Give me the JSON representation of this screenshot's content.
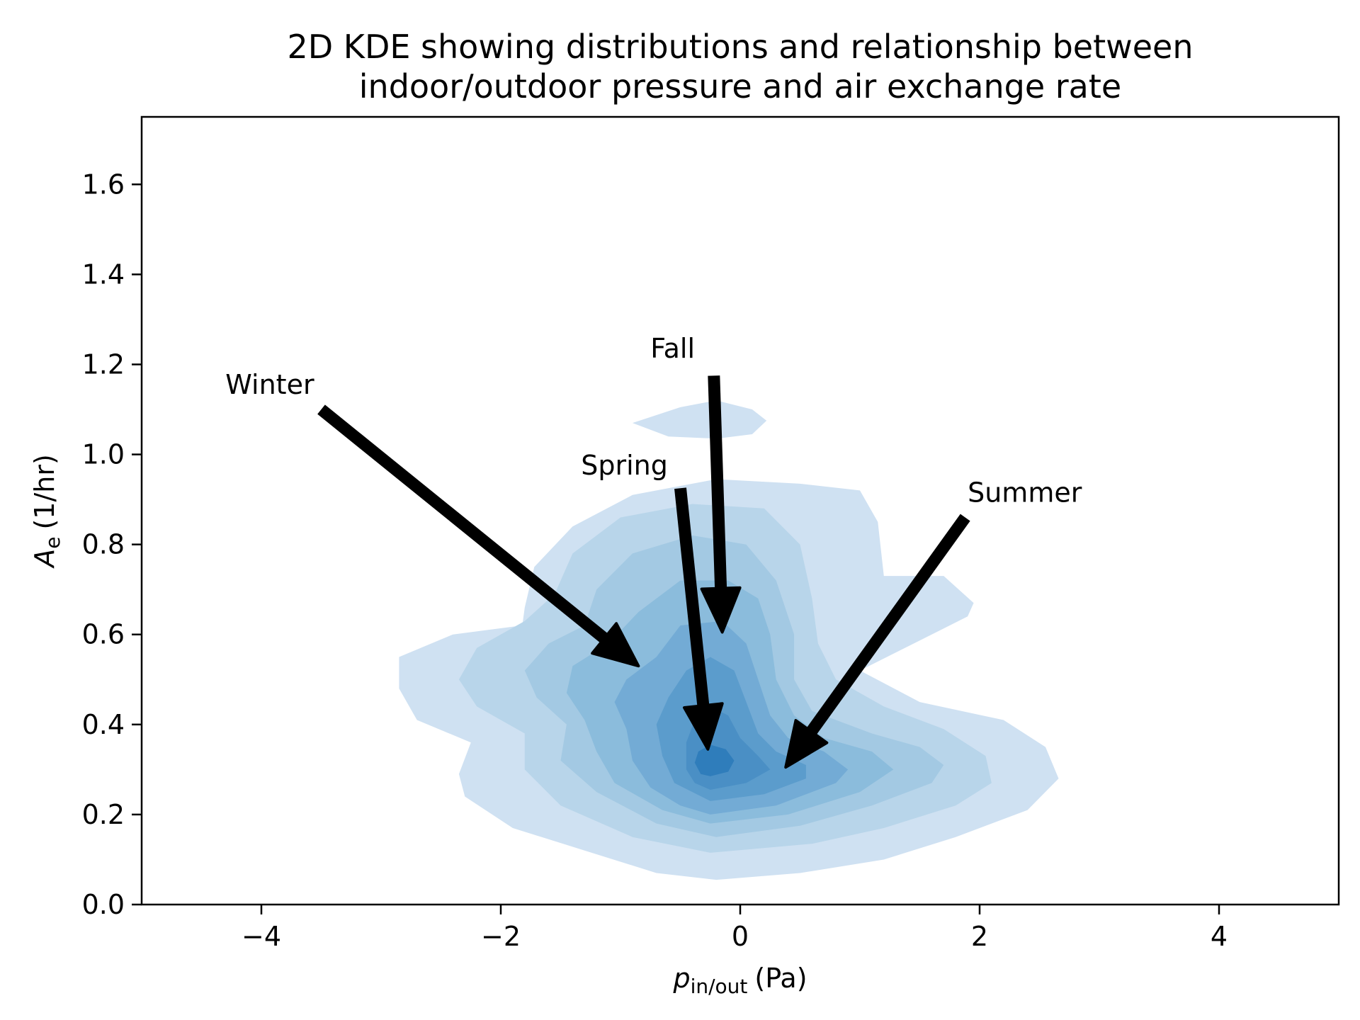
{
  "chart_data": {
    "type": "kde2d",
    "title": [
      "2D KDE showing distributions and relationship between",
      "indoor/outdoor pressure and air exchange rate"
    ],
    "xlabel": {
      "symbol": "p",
      "subscript": "in/out",
      "unit": "(Pa)"
    },
    "ylabel": {
      "symbol": "A",
      "subscript": "e",
      "unit": "(1/hr)"
    },
    "xlim": [
      -5,
      5
    ],
    "ylim": [
      0,
      1.75
    ],
    "xticks": [
      {
        "value": -4,
        "label": "−4"
      },
      {
        "value": -2,
        "label": "−2"
      },
      {
        "value": 0,
        "label": "0"
      },
      {
        "value": 2,
        "label": "2"
      },
      {
        "value": 4,
        "label": "4"
      }
    ],
    "yticks": [
      {
        "value": 0.0,
        "label": "0.0"
      },
      {
        "value": 0.2,
        "label": "0.2"
      },
      {
        "value": 0.4,
        "label": "0.4"
      },
      {
        "value": 0.6,
        "label": "0.6"
      },
      {
        "value": 0.8,
        "label": "0.8"
      },
      {
        "value": 1.0,
        "label": "1.0"
      },
      {
        "value": 1.2,
        "label": "1.2"
      },
      {
        "value": 1.4,
        "label": "1.4"
      },
      {
        "value": 1.6,
        "label": "1.6"
      }
    ],
    "grid": false,
    "colors": [
      "#cfe1f2",
      "#b8d5ea",
      "#a3c9e3",
      "#8bbcdc",
      "#73abd5",
      "#5b9ccc",
      "#4a8fc5",
      "#2f7dbb"
    ],
    "density_levels": [
      {
        "level": 1,
        "polygon": [
          [
            -0.2,
            0.055
          ],
          [
            0.5,
            0.07
          ],
          [
            1.2,
            0.1
          ],
          [
            1.8,
            0.15
          ],
          [
            2.4,
            0.21
          ],
          [
            2.66,
            0.28
          ],
          [
            2.55,
            0.35
          ],
          [
            2.2,
            0.41
          ],
          [
            1.5,
            0.45
          ],
          [
            1.0,
            0.52
          ],
          [
            1.45,
            0.58
          ],
          [
            1.9,
            0.64
          ],
          [
            1.95,
            0.67
          ],
          [
            1.7,
            0.73
          ],
          [
            1.2,
            0.73
          ],
          [
            1.15,
            0.85
          ],
          [
            1.0,
            0.92
          ],
          [
            0.5,
            0.935
          ],
          [
            -0.2,
            0.945
          ],
          [
            -0.9,
            0.91
          ],
          [
            -1.4,
            0.84
          ],
          [
            -1.72,
            0.75
          ],
          [
            -1.8,
            0.66
          ],
          [
            -1.82,
            0.62
          ],
          [
            -2.4,
            0.6
          ],
          [
            -2.85,
            0.55
          ],
          [
            -2.85,
            0.48
          ],
          [
            -2.7,
            0.41
          ],
          [
            -2.25,
            0.36
          ],
          [
            -2.35,
            0.29
          ],
          [
            -2.3,
            0.24
          ],
          [
            -1.9,
            0.17
          ],
          [
            -1.3,
            0.12
          ],
          [
            -0.7,
            0.07
          ],
          [
            -0.2,
            0.055
          ]
        ]
      },
      {
        "level": 2,
        "polygon": [
          [
            -0.25,
            0.115
          ],
          [
            0.6,
            0.135
          ],
          [
            1.2,
            0.17
          ],
          [
            1.8,
            0.22
          ],
          [
            2.1,
            0.27
          ],
          [
            2.05,
            0.33
          ],
          [
            1.7,
            0.39
          ],
          [
            1.2,
            0.44
          ],
          [
            0.8,
            0.5
          ],
          [
            0.65,
            0.58
          ],
          [
            0.6,
            0.68
          ],
          [
            0.5,
            0.8
          ],
          [
            0.2,
            0.88
          ],
          [
            -0.4,
            0.89
          ],
          [
            -1.0,
            0.86
          ],
          [
            -1.4,
            0.78
          ],
          [
            -1.55,
            0.69
          ],
          [
            -1.8,
            0.63
          ],
          [
            -2.2,
            0.57
          ],
          [
            -2.35,
            0.5
          ],
          [
            -2.2,
            0.44
          ],
          [
            -1.8,
            0.38
          ],
          [
            -1.8,
            0.3
          ],
          [
            -1.5,
            0.22
          ],
          [
            -0.9,
            0.15
          ],
          [
            -0.25,
            0.115
          ]
        ]
      },
      {
        "level": 3,
        "polygon": [
          [
            -0.2,
            0.15
          ],
          [
            0.5,
            0.175
          ],
          [
            1.1,
            0.22
          ],
          [
            1.6,
            0.27
          ],
          [
            1.7,
            0.31
          ],
          [
            1.5,
            0.35
          ],
          [
            1.1,
            0.38
          ],
          [
            0.6,
            0.43
          ],
          [
            0.45,
            0.5
          ],
          [
            0.45,
            0.6
          ],
          [
            0.3,
            0.72
          ],
          [
            0.05,
            0.8
          ],
          [
            -0.4,
            0.82
          ],
          [
            -0.9,
            0.78
          ],
          [
            -1.2,
            0.7
          ],
          [
            -1.3,
            0.62
          ],
          [
            -1.6,
            0.58
          ],
          [
            -1.8,
            0.52
          ],
          [
            -1.7,
            0.46
          ],
          [
            -1.45,
            0.4
          ],
          [
            -1.5,
            0.32
          ],
          [
            -1.2,
            0.25
          ],
          [
            -0.7,
            0.18
          ],
          [
            -0.2,
            0.15
          ]
        ]
      },
      {
        "level": 4,
        "polygon": [
          [
            -0.25,
            0.18
          ],
          [
            0.4,
            0.2
          ],
          [
            1.0,
            0.25
          ],
          [
            1.28,
            0.3
          ],
          [
            1.1,
            0.34
          ],
          [
            0.7,
            0.37
          ],
          [
            0.45,
            0.42
          ],
          [
            0.3,
            0.5
          ],
          [
            0.25,
            0.6
          ],
          [
            0.15,
            0.68
          ],
          [
            -0.1,
            0.72
          ],
          [
            -0.5,
            0.72
          ],
          [
            -0.85,
            0.65
          ],
          [
            -1.1,
            0.58
          ],
          [
            -1.4,
            0.53
          ],
          [
            -1.45,
            0.47
          ],
          [
            -1.3,
            0.41
          ],
          [
            -1.2,
            0.34
          ],
          [
            -1.05,
            0.27
          ],
          [
            -0.65,
            0.21
          ],
          [
            -0.25,
            0.18
          ]
        ]
      },
      {
        "level": 5,
        "polygon": [
          [
            -0.25,
            0.2
          ],
          [
            0.3,
            0.22
          ],
          [
            0.8,
            0.27
          ],
          [
            0.9,
            0.3
          ],
          [
            0.7,
            0.34
          ],
          [
            0.4,
            0.37
          ],
          [
            0.25,
            0.42
          ],
          [
            0.15,
            0.5
          ],
          [
            0.05,
            0.58
          ],
          [
            -0.15,
            0.63
          ],
          [
            -0.5,
            0.62
          ],
          [
            -0.7,
            0.55
          ],
          [
            -0.95,
            0.5
          ],
          [
            -1.05,
            0.45
          ],
          [
            -0.95,
            0.39
          ],
          [
            -0.9,
            0.32
          ],
          [
            -0.75,
            0.26
          ],
          [
            -0.5,
            0.22
          ],
          [
            -0.25,
            0.2
          ]
        ]
      },
      {
        "level": 6,
        "polygon": [
          [
            -0.25,
            0.23
          ],
          [
            0.2,
            0.245
          ],
          [
            0.55,
            0.28
          ],
          [
            0.55,
            0.31
          ],
          [
            0.3,
            0.34
          ],
          [
            0.15,
            0.38
          ],
          [
            0.05,
            0.45
          ],
          [
            -0.05,
            0.52
          ],
          [
            -0.25,
            0.55
          ],
          [
            -0.45,
            0.52
          ],
          [
            -0.6,
            0.46
          ],
          [
            -0.7,
            0.4
          ],
          [
            -0.65,
            0.33
          ],
          [
            -0.55,
            0.27
          ],
          [
            -0.25,
            0.23
          ]
        ]
      },
      {
        "level": 7,
        "polygon": [
          [
            -0.25,
            0.255
          ],
          [
            0.05,
            0.27
          ],
          [
            0.25,
            0.3
          ],
          [
            0.15,
            0.33
          ],
          [
            0.0,
            0.37
          ],
          [
            -0.1,
            0.42
          ],
          [
            -0.25,
            0.44
          ],
          [
            -0.38,
            0.41
          ],
          [
            -0.45,
            0.36
          ],
          [
            -0.45,
            0.3
          ],
          [
            -0.38,
            0.27
          ],
          [
            -0.25,
            0.255
          ]
        ]
      },
      {
        "level": 8,
        "polygon": [
          [
            -0.25,
            0.285
          ],
          [
            -0.1,
            0.295
          ],
          [
            -0.05,
            0.32
          ],
          [
            -0.12,
            0.345
          ],
          [
            -0.25,
            0.355
          ],
          [
            -0.35,
            0.34
          ],
          [
            -0.38,
            0.315
          ],
          [
            -0.33,
            0.29
          ],
          [
            -0.25,
            0.285
          ]
        ]
      },
      {
        "level": 1,
        "polygon": [
          [
            -0.9,
            1.07
          ],
          [
            -0.5,
            1.105
          ],
          [
            -0.2,
            1.12
          ],
          [
            0.1,
            1.1
          ],
          [
            0.22,
            1.075
          ],
          [
            0.1,
            1.045
          ],
          [
            -0.2,
            1.035
          ],
          [
            -0.6,
            1.04
          ],
          [
            -0.9,
            1.07
          ]
        ]
      }
    ],
    "annotations": [
      {
        "text": "Winter",
        "text_at": [
          -4.3,
          1.135
        ],
        "arrow_from": [
          -3.5,
          1.1
        ],
        "arrow_to": [
          -0.85,
          0.53
        ]
      },
      {
        "text": "Fall",
        "text_at": [
          -0.75,
          1.215
        ],
        "arrow_from": [
          -0.22,
          1.175
        ],
        "arrow_to": [
          -0.15,
          0.605
        ]
      },
      {
        "text": "Spring",
        "text_at": [
          -1.33,
          0.955
        ],
        "arrow_from": [
          -0.5,
          0.925
        ],
        "arrow_to": [
          -0.27,
          0.345
        ]
      },
      {
        "text": "Summer",
        "text_at": [
          1.9,
          0.895
        ],
        "arrow_from": [
          1.88,
          0.86
        ],
        "arrow_to": [
          0.38,
          0.305
        ]
      }
    ]
  }
}
